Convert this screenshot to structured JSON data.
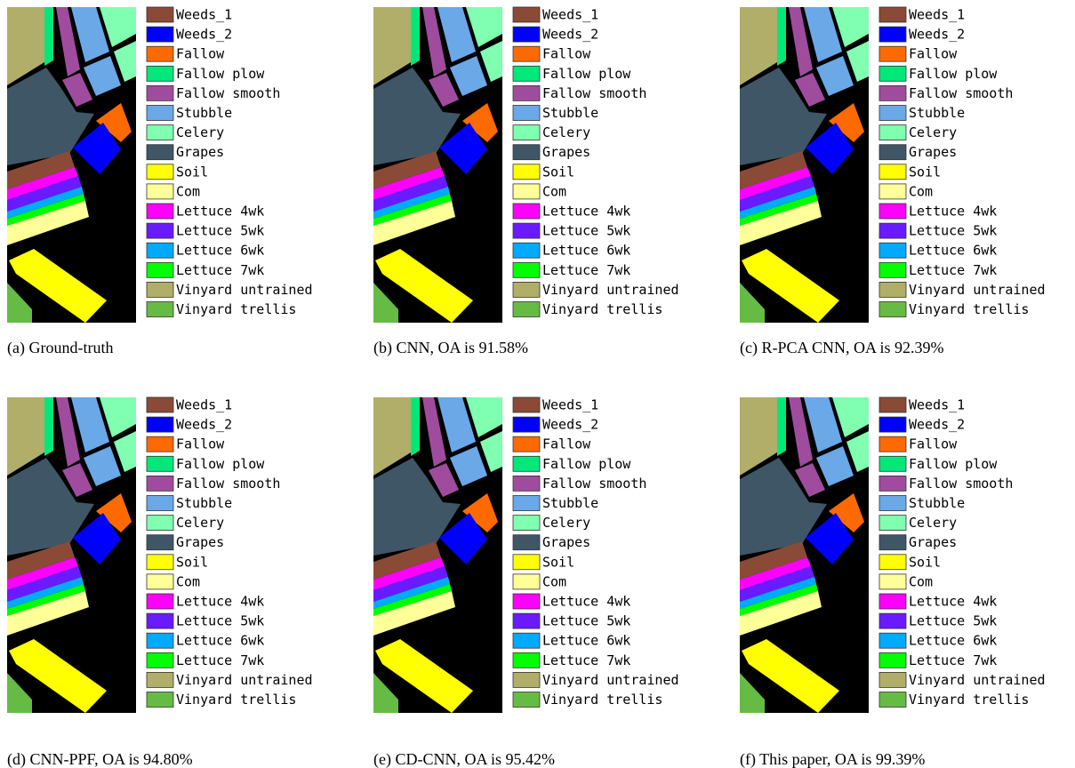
{
  "legend": [
    {
      "name": "Weeds_1",
      "color": "#8b4a36"
    },
    {
      "name": "Weeds_2",
      "color": "#0000ff"
    },
    {
      "name": "Fallow",
      "color": "#ff6a00"
    },
    {
      "name": "Fallow plow",
      "color": "#00e87a"
    },
    {
      "name": "Fallow smooth",
      "color": "#a04c9e"
    },
    {
      "name": "Stubble",
      "color": "#6aa8e8"
    },
    {
      "name": "Celery",
      "color": "#80ffb0"
    },
    {
      "name": "Grapes",
      "color": "#3f5666"
    },
    {
      "name": "Soil",
      "color": "#ffff00"
    },
    {
      "name": "Com",
      "color": "#ffff99"
    },
    {
      "name": "Lettuce 4wk",
      "color": "#ff00ff"
    },
    {
      "name": "Lettuce 5wk",
      "color": "#6a1aff"
    },
    {
      "name": "Lettuce 6wk",
      "color": "#00aaff"
    },
    {
      "name": "Lettuce 7wk",
      "color": "#00ff00"
    },
    {
      "name": "Vinyard untrained",
      "color": "#b0ae68"
    },
    {
      "name": "Vinyard trellis",
      "color": "#66bb44"
    }
  ],
  "panels": [
    {
      "caption": "(a) Ground-truth"
    },
    {
      "caption": "(b) CNN, OA is 91.58%"
    },
    {
      "caption": "(c) R-PCA CNN, OA is 92.39%"
    },
    {
      "caption": "(d) CNN-PPF, OA is 94.80%"
    },
    {
      "caption": "(e) CD-CNN, OA is 95.42%"
    },
    {
      "caption": "(f) This paper, OA is 99.39%"
    }
  ]
}
